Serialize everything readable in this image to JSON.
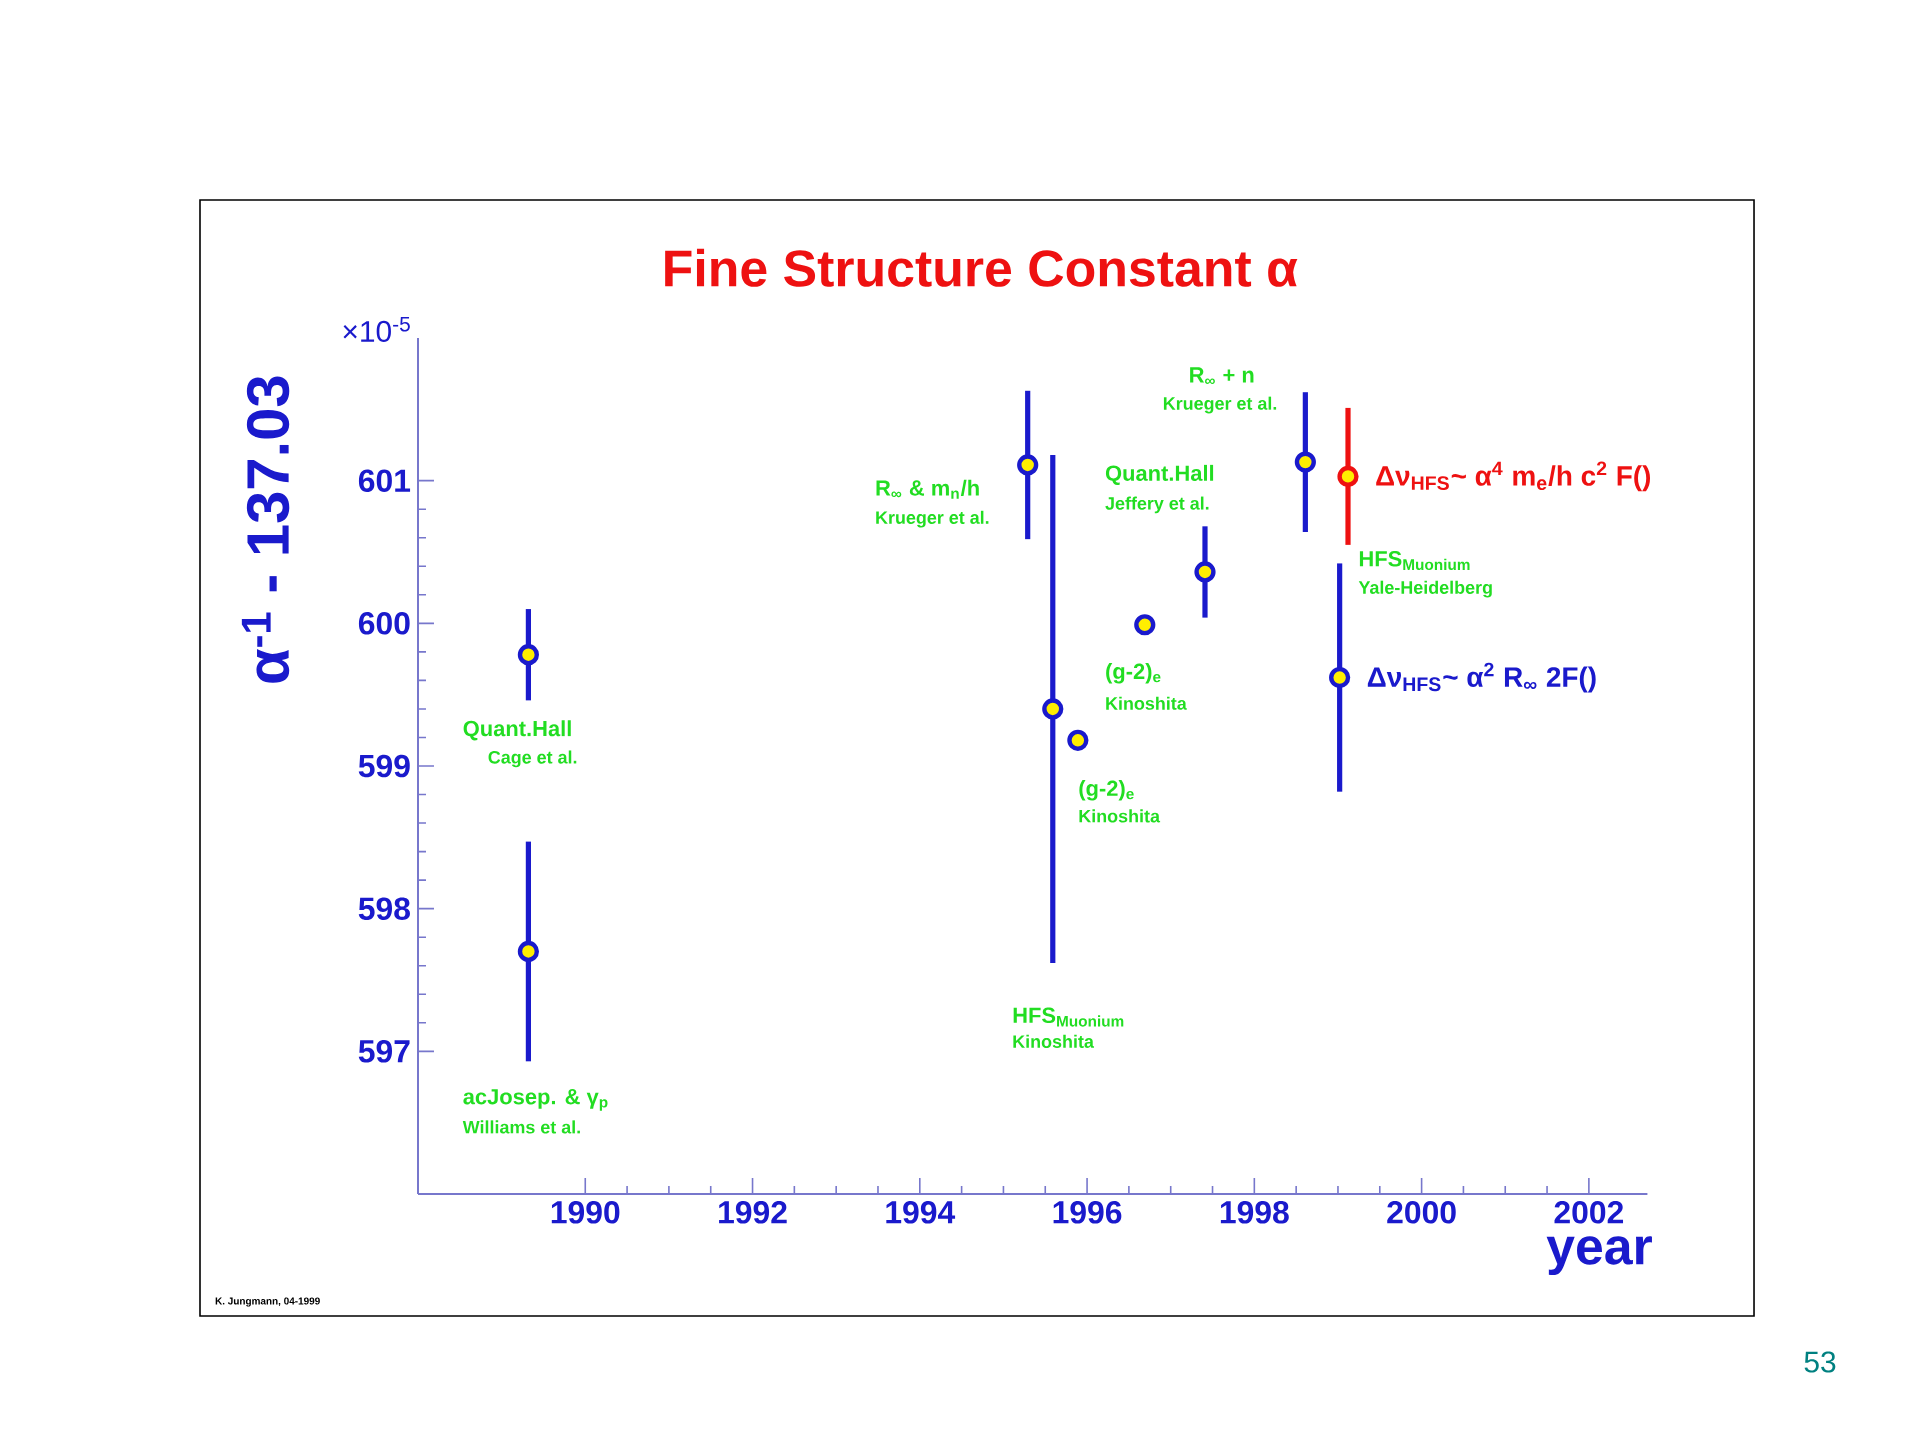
{
  "chart_data": {
    "type": "scatter",
    "title": "Fine Structure Constant α",
    "xlabel": "year",
    "ylabel": "α$^{-1}$ - 137.03",
    "xlim": [
      1988,
      2002.7
    ],
    "ylim": [
      596,
      602
    ],
    "xticks": [
      1990,
      1992,
      1994,
      1996,
      1998,
      2000,
      2002
    ],
    "yticks": [
      597,
      598,
      599,
      600,
      601
    ],
    "marker": "circle",
    "series": [
      {
        "color": "#1a1acc",
        "x": [
          1989.32,
          1989.32,
          1995.29,
          1995.59,
          1995.89,
          1996.69,
          1997.41,
          1998.61
        ],
        "values": [
          599.78,
          597.7,
          601.11,
          599.4,
          599.18,
          599.99,
          600.36,
          601.13
        ],
        "errors": [
          0.32,
          0.77,
          0.52,
          1.78,
          0.04,
          0.04,
          0.32,
          0.49
        ]
      },
      {
        "name": "Δν$_{HFS}$~ α$^{2}$ R$_{∞}$ 2F()",
        "color": "#1a1acc",
        "x": [
          1999.02
        ],
        "values": [
          599.62
        ],
        "errors": [
          0.8
        ]
      },
      {
        "name": "Δν$_{HFS}$~ α$^{4}$ m$_{e}$/h c$^{2}$ F()",
        "color": "#ee1111",
        "x": [
          1999.12
        ],
        "values": [
          601.03
        ],
        "errors": [
          0.48
        ]
      }
    ],
    "annotations": [
      "×10$^{-5}$",
      "Quant.Hall",
      "Cage et al.",
      "acJosep. & γ$_{p}$",
      "Williams et al.",
      "R$_{∞}$ & m$_{n}$/h",
      "Krueger et al.",
      "Quant.Hall",
      "Jeffery et al.",
      "(g-2)$_{e}$",
      "Kinoshita",
      "(g-2)$_{e}$",
      "Kinoshita",
      "HFS$_{Muonium}$",
      "Kinoshita",
      "R$_{∞}$ + n",
      "Krueger et al.",
      "HFS$_{Muonium}$",
      "Yale-Heidelberg",
      "K. Jungmann, 04-1999",
      "53"
    ]
  }
}
